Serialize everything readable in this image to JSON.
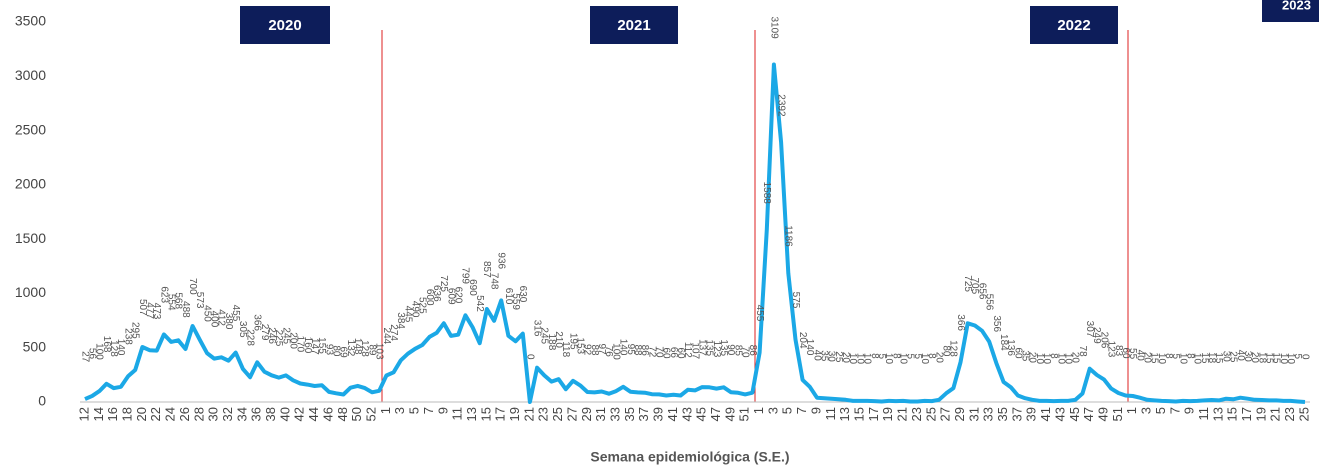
{
  "chart_data": {
    "type": "line",
    "x_label": "Semana epidemiológica (S.E.)",
    "annotations": [
      "2020",
      "2021",
      "2022",
      "2023"
    ],
    "categories": [
      "12",
      null,
      "14",
      null,
      "16",
      null,
      "18",
      null,
      "20",
      null,
      "22",
      null,
      "24",
      null,
      "26",
      null,
      "28",
      null,
      "30",
      null,
      "32",
      null,
      "34",
      null,
      "36",
      null,
      "38",
      null,
      "40",
      null,
      "42",
      null,
      "44",
      null,
      "46",
      null,
      "48",
      null,
      "50",
      null,
      "52",
      null,
      "1",
      null,
      "3",
      null,
      "5",
      null,
      "7",
      null,
      "9",
      null,
      "11",
      null,
      "13",
      null,
      "15",
      null,
      "17",
      null,
      "19",
      null,
      "21",
      null,
      "23",
      null,
      "25",
      null,
      "27",
      null,
      "29",
      null,
      "31",
      null,
      "33",
      null,
      "35",
      null,
      "37",
      null,
      "39",
      null,
      "41",
      null,
      "43",
      null,
      "45",
      null,
      "47",
      null,
      "49",
      null,
      "51",
      null,
      "1",
      null,
      "3",
      null,
      "5",
      null,
      "7",
      null,
      "9",
      null,
      "11",
      null,
      "13",
      null,
      "15",
      null,
      "17",
      null,
      "19",
      null,
      "21",
      null,
      "23",
      null,
      "25",
      null,
      "27",
      null,
      "29",
      null,
      "31",
      null,
      "33",
      null,
      "35",
      null,
      "37",
      null,
      "39",
      null,
      "41",
      null,
      "43",
      null,
      "45",
      null,
      "47",
      null,
      "49",
      null,
      "51",
      null,
      "1",
      null,
      "3",
      null,
      "5",
      null,
      "7",
      null,
      "9",
      null,
      "11",
      null,
      "13",
      null,
      "15",
      null,
      "17",
      null,
      "19",
      null,
      "21",
      null,
      "23",
      null,
      "25"
    ],
    "values": [
      27,
      56,
      100,
      168,
      128,
      140,
      238,
      295,
      507,
      477,
      473,
      623,
      554,
      568,
      488,
      700,
      573,
      450,
      400,
      412,
      380,
      455,
      305,
      228,
      366,
      279,
      246,
      225,
      245,
      200,
      170,
      160,
      147,
      155,
      93,
      80,
      69,
      132,
      148,
      128,
      89,
      103,
      244,
      274,
      384,
      445,
      490,
      525,
      600,
      636,
      725,
      609,
      620,
      799,
      690,
      542,
      857,
      748,
      936,
      610,
      559,
      630,
      0,
      316,
      245,
      188,
      210,
      118,
      195,
      153,
      92,
      88,
      97,
      76,
      100,
      140,
      95,
      88,
      86,
      72,
      70,
      60,
      66,
      60,
      112,
      107,
      137,
      135,
      123,
      135,
      90,
      85,
      70,
      86,
      455,
      1588,
      3109,
      2392,
      1186,
      575,
      204,
      140,
      40,
      35,
      30,
      25,
      20,
      10,
      10,
      10,
      8,
      5,
      10,
      8,
      10,
      5,
      5,
      10,
      8,
      20,
      80,
      128,
      366,
      725,
      705,
      656,
      556,
      356,
      184,
      136,
      60,
      35,
      20,
      10,
      10,
      8,
      10,
      10,
      20,
      78,
      307,
      249,
      206,
      123,
      83,
      60,
      55,
      40,
      20,
      15,
      10,
      8,
      5,
      10,
      8,
      10,
      15,
      18,
      15,
      30,
      25,
      40,
      30,
      20,
      18,
      15,
      15,
      10,
      10,
      5,
      0
    ],
    "color": "#1ba8e6",
    "ylim": [
      0,
      3500
    ],
    "yticks": [
      0,
      500,
      1000,
      1500,
      2000,
      2500,
      3000,
      3500
    ],
    "grid": false
  }
}
